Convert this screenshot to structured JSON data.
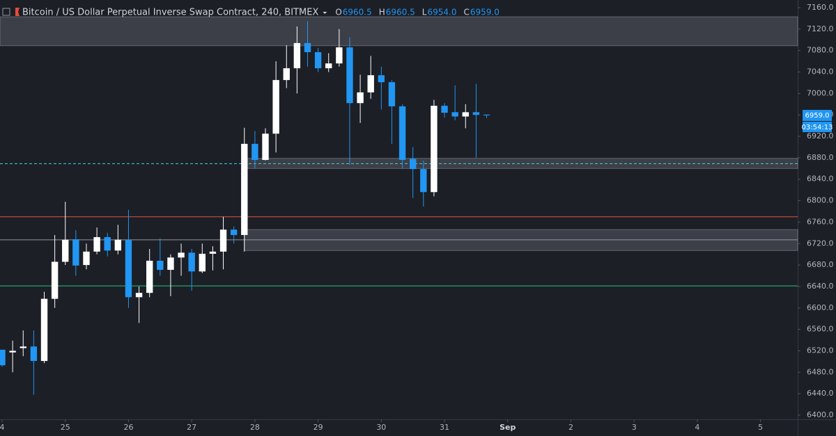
{
  "chart_data": {
    "type": "candlestick",
    "title": "Bitcoin / US Dollar Perpetual Inverse Swap Contract, 240, BITMEX",
    "legend_ohlc": [
      {
        "key": "O",
        "text": "6960.5"
      },
      {
        "key": "H",
        "text": "6960.5"
      },
      {
        "key": "L",
        "text": "6954.0"
      },
      {
        "key": "C",
        "text": "6959.0"
      }
    ],
    "x": [
      0,
      1,
      2,
      3,
      4,
      5,
      6,
      7,
      8,
      9,
      10,
      11,
      12,
      13,
      14,
      15,
      16,
      17,
      18,
      19,
      20,
      21,
      22,
      23,
      24,
      25,
      26,
      27,
      28,
      29,
      30,
      31,
      32,
      33,
      34,
      35,
      36,
      37,
      38,
      39,
      40,
      41,
      42,
      43,
      44,
      45,
      46
    ],
    "open": [
      6522,
      6517,
      6525,
      6528,
      6501,
      6617,
      6686,
      6728,
      6680,
      6705,
      6732,
      6707,
      6727,
      6620,
      6628,
      6688,
      6671,
      6694,
      6703,
      6668,
      6701,
      6705,
      6746,
      6736,
      6906,
      6876,
      6925,
      7025,
      7047,
      7094,
      7077,
      7047,
      7056,
      7086,
      6982,
      7002,
      7034,
      7021,
      6976,
      6878,
      6859,
      6816,
      6977,
      6965,
      6957,
      6965,
      6960.5
    ],
    "high": [
      6522,
      6539,
      6558,
      6558,
      6630,
      6736,
      6798,
      6745,
      6720,
      6750,
      6740,
      6755,
      6783,
      6640,
      6710,
      6730,
      6700,
      6720,
      6710,
      6720,
      6715,
      6770,
      6752,
      6936,
      6930,
      6935,
      7060,
      7090,
      7125,
      7135,
      7085,
      7075,
      7120,
      7105,
      7035,
      7070,
      7050,
      7025,
      6980,
      6900,
      6875,
      6988,
      6982,
      7015,
      6980,
      7018,
      6960.5
    ],
    "low": [
      6490,
      6480,
      6510,
      6438,
      6497,
      6600,
      6680,
      6660,
      6672,
      6700,
      6696,
      6700,
      6600,
      6572,
      6620,
      6660,
      6622,
      6660,
      6632,
      6665,
      6670,
      6672,
      6720,
      6705,
      6860,
      6875,
      6890,
      7010,
      7000,
      7050,
      7040,
      7040,
      7050,
      6867,
      6945,
      6990,
      6970,
      6906,
      6860,
      6805,
      6789,
      6808,
      6955,
      6950,
      6935,
      6880,
      6954
    ],
    "close": [
      6493,
      6520,
      6528,
      6501,
      6617,
      6686,
      6727,
      6679,
      6705,
      6732,
      6707,
      6727,
      6620,
      6628,
      6688,
      6671,
      6694,
      6703,
      6668,
      6701,
      6705,
      6746,
      6736,
      6906,
      6876,
      6925,
      7025,
      7047,
      7094,
      7077,
      7047,
      7056,
      7086,
      6982,
      7002,
      7034,
      7021,
      6976,
      6876,
      6859,
      6816,
      6977,
      6964,
      6957,
      6965,
      6960,
      6959
    ],
    "up_color": "#ffffff",
    "down_color": "#2196f3",
    "xlim": [
      -0.2,
      75.53
    ],
    "xticks": [
      {
        "value": 0,
        "label": "4"
      },
      {
        "value": 6,
        "label": "25"
      },
      {
        "value": 12,
        "label": "26"
      },
      {
        "value": 18,
        "label": "27"
      },
      {
        "value": 24,
        "label": "28"
      },
      {
        "value": 30,
        "label": "29"
      },
      {
        "value": 36,
        "label": "30"
      },
      {
        "value": 42,
        "label": "31"
      },
      {
        "value": 48,
        "label": "Sep"
      },
      {
        "value": 54,
        "label": "2"
      },
      {
        "value": 60,
        "label": "3"
      },
      {
        "value": 66,
        "label": "4"
      },
      {
        "value": 72,
        "label": "5"
      }
    ],
    "ylim": [
      6392.2,
      7174.3
    ],
    "yticks": [
      {
        "value": 7160,
        "label": "7160.0"
      },
      {
        "value": 7120,
        "label": "7120.0"
      },
      {
        "value": 7080,
        "label": "7080.0"
      },
      {
        "value": 7040,
        "label": "7040.0"
      },
      {
        "value": 7000,
        "label": "7000.0"
      },
      {
        "value": 6960,
        "label": "6960.0"
      },
      {
        "value": 6920,
        "label": "6920.0"
      },
      {
        "value": 6880,
        "label": "6880.0"
      },
      {
        "value": 6840,
        "label": "6840.0"
      },
      {
        "value": 6800,
        "label": "6800.0"
      },
      {
        "value": 6760,
        "label": "6760.0"
      },
      {
        "value": 6720,
        "label": "6720.0"
      },
      {
        "value": 6680,
        "label": "6680.0"
      },
      {
        "value": 6640,
        "label": "6640.0"
      },
      {
        "value": 6600,
        "label": "6600.0"
      },
      {
        "value": 6560,
        "label": "6560.0"
      },
      {
        "value": 6520,
        "label": "6520.0"
      },
      {
        "value": 6480,
        "label": "6480.0"
      },
      {
        "value": 6440,
        "label": "6440.0"
      },
      {
        "value": 6400,
        "label": "6400.0"
      }
    ],
    "zones": [
      {
        "from": 7143,
        "to": 7089,
        "x_start": -0.2
      },
      {
        "from": 6879,
        "to": 6860,
        "x_start": 23
      },
      {
        "from": 6746,
        "to": 6707,
        "x_start": 23
      }
    ],
    "hlines": [
      {
        "value": 6727,
        "color": "#9598a1",
        "style": "solid"
      },
      {
        "value": 6770,
        "color": "#e0533d",
        "style": "solid"
      },
      {
        "value": 6641,
        "color": "#26c281",
        "style": "solid"
      },
      {
        "value": 6869,
        "color": "#4dd0e1",
        "style": "dashed"
      }
    ],
    "last_price": {
      "value": 6959,
      "label": "6959.0"
    },
    "countdown": "03:54:13"
  }
}
